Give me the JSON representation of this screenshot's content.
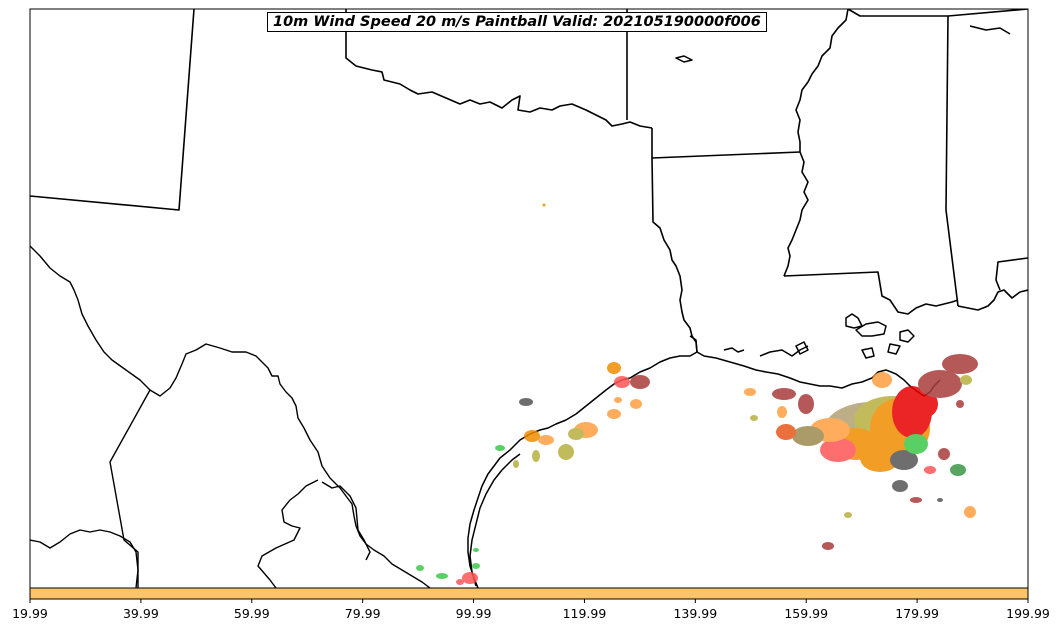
{
  "title": "10m Wind Speed 20 m/s Paintball Valid: 202105190000f006",
  "colorbar": {
    "color": "#FFC468",
    "ticks": [
      "19.99",
      "39.99",
      "59.99",
      "79.99",
      "99.99",
      "119.99",
      "139.99",
      "159.99",
      "179.99",
      "199.99"
    ]
  },
  "paint_colors": {
    "red": "#E80000",
    "light_red": "#FF5555",
    "orange": "#F08C00",
    "light_orange": "#FF9F40",
    "olive": "#B8B040",
    "green": "#3CC84A",
    "dark_green": "#3C9646",
    "brown": "#A83C3C",
    "tan": "#9C8A50",
    "gray": "#555555"
  }
}
